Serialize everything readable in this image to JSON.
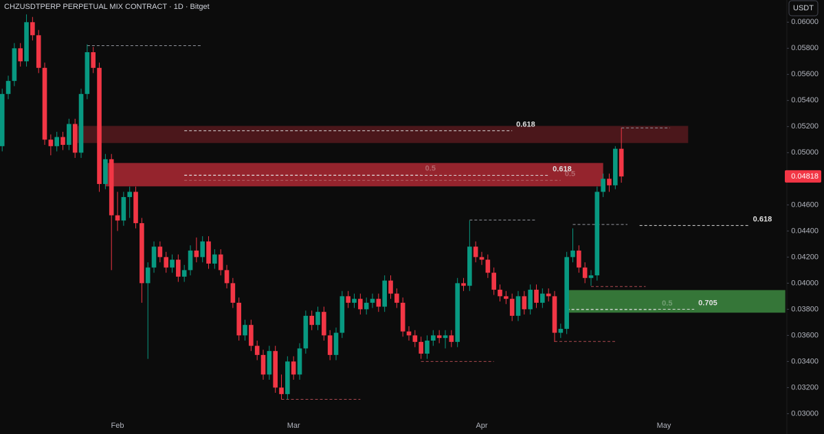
{
  "chart_data": {
    "type": "candlestick",
    "title": "CHZUSDTPERP PERPETUAL MIX CONTRACT · 1D · Bitget",
    "currency": "USDT",
    "colors": {
      "up": "#089981",
      "down": "#f23645"
    },
    "grid": false,
    "categories": [
      null,
      null,
      null,
      null,
      null,
      null,
      null,
      null,
      null,
      null,
      null,
      null,
      null,
      null,
      null,
      null,
      null,
      null,
      null,
      "Feb",
      null,
      null,
      null,
      null,
      null,
      null,
      null,
      null,
      null,
      null,
      null,
      null,
      null,
      null,
      null,
      null,
      null,
      null,
      null,
      null,
      null,
      null,
      null,
      null,
      null,
      null,
      null,
      null,
      "Mar",
      null,
      null,
      null,
      null,
      null,
      null,
      null,
      null,
      null,
      null,
      null,
      null,
      null,
      null,
      null,
      null,
      null,
      null,
      null,
      null,
      null,
      null,
      null,
      null,
      null,
      null,
      null,
      null,
      null,
      null,
      "Apr",
      null,
      null,
      null,
      null,
      null,
      null,
      null,
      null,
      null,
      null,
      null,
      null,
      null,
      null,
      null,
      null,
      null,
      null,
      null,
      null,
      null,
      null,
      null,
      null,
      null,
      null,
      null,
      null,
      null,
      "May"
    ],
    "open": [
      0.0505,
      0.0545,
      0.0555,
      0.058,
      0.057,
      0.06,
      0.059,
      0.0565,
      0.051,
      0.0505,
      0.0512,
      0.0506,
      0.0522,
      0.05,
      0.0545,
      0.0577,
      0.0565,
      0.0476,
      0.0495,
      0.0452,
      0.0448,
      0.0466,
      0.047,
      0.0446,
      0.04,
      0.0412,
      0.0428,
      0.042,
      0.0412,
      0.0418,
      0.0405,
      0.041,
      0.0425,
      0.042,
      0.0432,
      0.0415,
      0.0422,
      0.041,
      0.04,
      0.0385,
      0.036,
      0.0368,
      0.0352,
      0.0345,
      0.033,
      0.0348,
      0.032,
      0.0315,
      0.034,
      0.033,
      0.035,
      0.0375,
      0.0368,
      0.0378,
      0.036,
      0.0345,
      0.0362,
      0.039,
      0.0385,
      0.0388,
      0.038,
      0.0385,
      0.0388,
      0.0382,
      0.0402,
      0.0392,
      0.0385,
      0.0363,
      0.036,
      0.0355,
      0.0346,
      0.0356,
      0.036,
      0.0358,
      0.036,
      0.0355,
      0.04,
      0.0398,
      0.0428,
      0.042,
      0.0418,
      0.0408,
      0.0395,
      0.039,
      0.0388,
      0.0375,
      0.039,
      0.038,
      0.0395,
      0.0385,
      0.0392,
      0.039,
      0.0362,
      0.0365,
      0.042,
      0.0425,
      0.0412,
      0.0404,
      0.0406,
      0.047,
      0.048,
      0.0475,
      0.0503,
      null,
      null,
      null,
      null,
      null,
      null,
      null
    ],
    "high": [
      0.0549,
      0.0559,
      0.0584,
      0.0584,
      0.0606,
      0.0604,
      0.0594,
      0.0569,
      0.0514,
      0.0516,
      0.0516,
      0.0526,
      0.0526,
      0.0549,
      0.0583,
      0.0581,
      0.0569,
      0.0499,
      0.0499,
      0.047,
      0.047,
      0.0474,
      0.0474,
      0.045,
      0.0416,
      0.0432,
      0.0432,
      0.0424,
      0.0422,
      0.0422,
      0.0414,
      0.0429,
      0.0435,
      0.0436,
      0.0436,
      0.0426,
      0.0426,
      0.0414,
      0.0404,
      0.0389,
      0.0372,
      0.0372,
      0.0356,
      0.0349,
      0.0352,
      0.0352,
      0.033,
      0.0344,
      0.0344,
      0.0354,
      0.0379,
      0.0379,
      0.0382,
      0.0382,
      0.0364,
      0.0366,
      0.0394,
      0.0394,
      0.0392,
      0.0392,
      0.0389,
      0.0392,
      0.0392,
      0.0406,
      0.0406,
      0.0396,
      0.0389,
      0.0367,
      0.0364,
      0.0359,
      0.036,
      0.0364,
      0.0364,
      0.0364,
      0.0364,
      0.0404,
      0.0404,
      0.0448,
      0.0432,
      0.0424,
      0.0422,
      0.0412,
      0.0399,
      0.0394,
      0.0392,
      0.0394,
      0.0394,
      0.0399,
      0.0399,
      0.0396,
      0.0396,
      0.0394,
      0.0369,
      0.0424,
      0.0442,
      0.0429,
      0.0416,
      0.041,
      0.0474,
      0.0484,
      0.0484,
      0.0505,
      0.0519,
      null,
      null,
      null,
      null,
      null,
      null,
      null
    ],
    "low": [
      0.0501,
      0.0541,
      0.0551,
      0.0566,
      0.0566,
      0.0586,
      0.0561,
      0.0506,
      0.0498,
      0.0501,
      0.0502,
      0.0502,
      0.0496,
      0.0496,
      0.0541,
      0.0561,
      0.047,
      0.0472,
      0.041,
      0.044,
      0.0444,
      0.045,
      0.0442,
      0.0385,
      0.0342,
      0.0408,
      0.0416,
      0.0408,
      0.0408,
      0.0401,
      0.0401,
      0.0406,
      0.0416,
      0.0416,
      0.0411,
      0.0411,
      0.0406,
      0.0396,
      0.0381,
      0.0356,
      0.0356,
      0.0348,
      0.0341,
      0.0326,
      0.0326,
      0.0316,
      0.0311,
      0.0311,
      0.0326,
      0.0326,
      0.0346,
      0.0364,
      0.0364,
      0.0356,
      0.0341,
      0.0341,
      0.0358,
      0.0381,
      0.0381,
      0.0376,
      0.0376,
      0.0381,
      0.0378,
      0.0378,
      0.0388,
      0.0381,
      0.0359,
      0.0356,
      0.0351,
      0.0342,
      0.0342,
      0.0352,
      0.0354,
      0.035,
      0.0351,
      0.0351,
      0.0394,
      0.0394,
      0.0416,
      0.0414,
      0.0404,
      0.0391,
      0.0386,
      0.0384,
      0.0371,
      0.0371,
      0.0376,
      0.0376,
      0.0381,
      0.0381,
      0.0386,
      0.0355,
      0.0358,
      0.0361,
      0.0416,
      0.0408,
      0.04,
      0.0398,
      0.0402,
      0.0466,
      0.047,
      0.0472,
      0.0477,
      null,
      null,
      null,
      null,
      null,
      null,
      null
    ],
    "close": [
      0.0545,
      0.0555,
      0.058,
      0.057,
      0.06,
      0.059,
      0.0565,
      0.051,
      0.0505,
      0.0512,
      0.0506,
      0.0522,
      0.05,
      0.0545,
      0.0577,
      0.0565,
      0.0476,
      0.0495,
      0.0452,
      0.0448,
      0.0466,
      0.047,
      0.0446,
      0.04,
      0.0412,
      0.0428,
      0.042,
      0.0412,
      0.0418,
      0.0405,
      0.041,
      0.0425,
      0.042,
      0.0432,
      0.0415,
      0.0422,
      0.041,
      0.04,
      0.0385,
      0.036,
      0.0368,
      0.0352,
      0.0345,
      0.033,
      0.0348,
      0.032,
      0.0315,
      0.034,
      0.033,
      0.035,
      0.0375,
      0.0368,
      0.0378,
      0.036,
      0.0345,
      0.0362,
      0.039,
      0.0385,
      0.0388,
      0.038,
      0.0385,
      0.0388,
      0.0382,
      0.0402,
      0.0392,
      0.0385,
      0.0363,
      0.036,
      0.0355,
      0.0346,
      0.0356,
      0.036,
      0.0358,
      0.036,
      0.0355,
      0.04,
      0.0398,
      0.0428,
      0.042,
      0.0418,
      0.0408,
      0.0395,
      0.039,
      0.0388,
      0.0375,
      0.039,
      0.038,
      0.0395,
      0.0385,
      0.0392,
      0.039,
      0.0362,
      0.0365,
      0.042,
      0.0425,
      0.0412,
      0.0404,
      0.0406,
      0.047,
      0.048,
      0.0475,
      0.0503,
      0.04818,
      null,
      null,
      null,
      null,
      null,
      null,
      null
    ],
    "last_price": {
      "value": 0.04818,
      "label": "0.04818"
    },
    "ylim": [
      0.0296,
      0.0617
    ],
    "yticks": [
      {
        "value": 0.03,
        "label": "0.03000"
      },
      {
        "value": 0.032,
        "label": "0.03200"
      },
      {
        "value": 0.034,
        "label": "0.03400"
      },
      {
        "value": 0.036,
        "label": "0.03600"
      },
      {
        "value": 0.038,
        "label": "0.03800"
      },
      {
        "value": 0.04,
        "label": "0.04000"
      },
      {
        "value": 0.042,
        "label": "0.04200"
      },
      {
        "value": 0.044,
        "label": "0.04400"
      },
      {
        "value": 0.046,
        "label": "0.04600"
      },
      {
        "value": 0.048,
        "label": "0.04800"
      },
      {
        "value": 0.05,
        "label": "0.05000"
      },
      {
        "value": 0.052,
        "label": "0.05200"
      },
      {
        "value": 0.054,
        "label": "0.05400"
      },
      {
        "value": 0.056,
        "label": "0.05600"
      },
      {
        "value": 0.058,
        "label": "0.05800"
      },
      {
        "value": 0.06,
        "label": "0.06000"
      }
    ],
    "zones": [
      {
        "top": 0.05205,
        "bottom": 0.05074,
        "from": 12,
        "to": 113,
        "color": "rgba(242,54,69,0.28)"
      },
      {
        "top": 0.04921,
        "bottom": 0.04742,
        "from": 17,
        "to": 99,
        "color": "rgba(242,54,69,0.6)"
      },
      {
        "top": 0.03947,
        "bottom": 0.03774,
        "from": 93,
        "to": 129,
        "color": "rgba(76,175,80,0.65)"
      }
    ],
    "levels": [
      {
        "price": 0.0582,
        "from": 14,
        "to": 33,
        "color": "#9598a1"
      },
      {
        "price": 0.05168,
        "from": 30,
        "to": 84,
        "color": "#e0e0e0",
        "label": "0.618"
      },
      {
        "price": 0.04826,
        "from": 30,
        "to": 90,
        "color": "#e0e0e0",
        "label": "0.618"
      },
      {
        "price": 0.0483,
        "from": 30,
        "to": 69,
        "color": "rgba(255,255,255,0.3)",
        "label": "0.5"
      },
      {
        "price": 0.04788,
        "from": 30,
        "to": 92,
        "color": "rgba(255,255,255,0.3)",
        "label": "0.5"
      },
      {
        "price": 0.0519,
        "from": 102,
        "to": 110,
        "color": "#9598a1"
      },
      {
        "price": 0.04442,
        "from": 105,
        "to": 123,
        "color": "#e0e0e0",
        "label": "0.618"
      },
      {
        "price": 0.04484,
        "from": 77,
        "to": 88,
        "color": "#9598a1"
      },
      {
        "price": 0.0445,
        "from": 94,
        "to": 103,
        "color": "#9598a1"
      },
      {
        "price": 0.03974,
        "from": 97,
        "to": 106,
        "color": "#b04a52"
      },
      {
        "price": 0.038,
        "from": 93,
        "to": 114,
        "color": "#e0e0e0",
        "label": "0.705"
      },
      {
        "price": 0.03795,
        "from": 93,
        "to": 108,
        "color": "rgba(255,255,255,0.3)",
        "label": "0.5"
      },
      {
        "price": 0.03553,
        "from": 91,
        "to": 101,
        "color": "#b04a52"
      },
      {
        "price": 0.034,
        "from": 69,
        "to": 81,
        "color": "#b04a52"
      },
      {
        "price": 0.0311,
        "from": 46,
        "to": 59,
        "color": "#b04a52"
      }
    ]
  }
}
